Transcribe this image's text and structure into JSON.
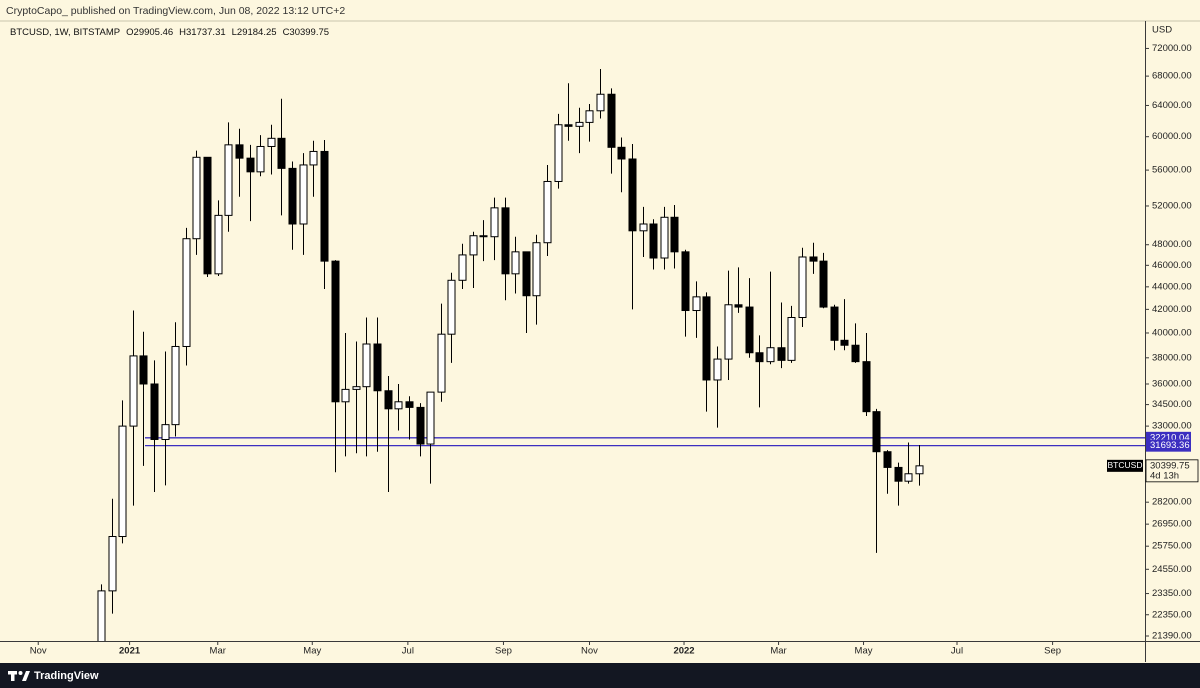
{
  "chart_data": {
    "type": "candlestick",
    "publisher_line": "CryptoCapo_ published on TradingView.com, Jun 08, 2022 13:12 UTC+2",
    "legend": {
      "symbol": "BTCUSD, 1W, BITSTAMP",
      "open": "O29905.46",
      "high": "H31737.31",
      "low": "L29184.25",
      "close": "C30399.75"
    },
    "currency": "USD",
    "brand": "TradingView",
    "open": [
      19170,
      23480,
      26270,
      33000,
      38150,
      36000,
      32100,
      33100,
      38900,
      48600,
      57500,
      45200,
      51000,
      59000,
      57400,
      55800,
      58800,
      59800,
      56200,
      50100,
      56600,
      58200,
      46400,
      34700,
      35600,
      35800,
      39100,
      35500,
      34200,
      34700,
      34300,
      31800,
      35400,
      39900,
      44600,
      47000,
      48900,
      48800,
      51800,
      45200,
      47300,
      43200,
      48200,
      54700,
      61500,
      61300,
      61800,
      63300,
      65500,
      58700,
      57300,
      49400,
      50100,
      46700,
      50800,
      47300,
      41900,
      43100,
      36300,
      37900,
      42400,
      42200,
      38400,
      37700,
      38800,
      37800,
      41300,
      46800,
      46400,
      42200,
      39400,
      39000,
      37700,
      34000,
      31300,
      30300,
      29450,
      29905.46
    ],
    "high": [
      23800,
      28400,
      34800,
      41900,
      40100,
      37800,
      38500,
      40900,
      49700,
      58300,
      57500,
      52600,
      61800,
      61000,
      59000,
      60200,
      61500,
      64900,
      57000,
      58000,
      59500,
      59600,
      46500,
      40000,
      39300,
      41300,
      41300,
      36600,
      36000,
      35100,
      34600,
      35400,
      42500,
      45300,
      48100,
      49300,
      50500,
      52900,
      52900,
      48800,
      47300,
      49000,
      56600,
      62900,
      67000,
      63700,
      64200,
      69000,
      66300,
      59900,
      59100,
      51900,
      50600,
      51900,
      52100,
      47500,
      44500,
      43500,
      38900,
      45500,
      45800,
      44800,
      39800,
      45400,
      42600,
      42300,
      47700,
      48200,
      47200,
      42400,
      42900,
      40800,
      40000,
      34200,
      31400,
      30600,
      31900,
      31737.31
    ],
    "low": [
      19000,
      22400,
      25900,
      28000,
      30400,
      28800,
      29200,
      32300,
      37400,
      47000,
      44900,
      45000,
      49300,
      53000,
      50400,
      55300,
      55500,
      51000,
      47500,
      47000,
      53000,
      43800,
      30000,
      31000,
      31200,
      31000,
      31300,
      28800,
      32700,
      32100,
      31000,
      29300,
      34700,
      37600,
      43800,
      43900,
      46400,
      46500,
      42800,
      43400,
      40000,
      40700,
      46900,
      53900,
      59500,
      58000,
      59400,
      62300,
      55600,
      53500,
      42000,
      46800,
      45600,
      45600,
      45700,
      39700,
      39600,
      34000,
      32900,
      36300,
      41700,
      38000,
      34300,
      37500,
      37200,
      37600,
      40500,
      45200,
      42100,
      38600,
      38600,
      37600,
      33700,
      25400,
      28700,
      28000,
      29300,
      29184.25
    ],
    "close": [
      23480,
      26270,
      33000,
      38150,
      36000,
      32100,
      33100,
      38900,
      48600,
      57500,
      45200,
      51000,
      59000,
      57400,
      55800,
      58800,
      59800,
      56200,
      50100,
      56600,
      58200,
      46400,
      34700,
      35600,
      35800,
      39100,
      35500,
      34200,
      34700,
      34300,
      31800,
      35400,
      39900,
      44600,
      47000,
      48900,
      48800,
      51800,
      45200,
      47300,
      43200,
      48200,
      54700,
      61500,
      61300,
      61800,
      63300,
      65500,
      58700,
      57300,
      49400,
      50100,
      46700,
      50800,
      47300,
      41900,
      43100,
      36300,
      37900,
      42400,
      42200,
      38400,
      37700,
      38800,
      37800,
      41300,
      46800,
      46400,
      42200,
      39400,
      39000,
      37700,
      34000,
      31300,
      30300,
      29450,
      29905.46,
      30399.75
    ],
    "up_color": "#ffffff",
    "down_color": "#000000",
    "log_scale": true,
    "grid": false,
    "ylim": [
      21170,
      76200
    ],
    "yticks": [
      {
        "value": 72000,
        "label": "72000.00"
      },
      {
        "value": 68000,
        "label": "68000.00"
      },
      {
        "value": 64000,
        "label": "64000.00"
      },
      {
        "value": 60000,
        "label": "60000.00"
      },
      {
        "value": 56000,
        "label": "56000.00"
      },
      {
        "value": 52000,
        "label": "52000.00"
      },
      {
        "value": 48000,
        "label": "48000.00"
      },
      {
        "value": 46000,
        "label": "46000.00"
      },
      {
        "value": 44000,
        "label": "44000.00"
      },
      {
        "value": 42000,
        "label": "42000.00"
      },
      {
        "value": 40000,
        "label": "40000.00"
      },
      {
        "value": 38000,
        "label": "38000.00"
      },
      {
        "value": 36000,
        "label": "36000.00"
      },
      {
        "value": 34500,
        "label": "34500.00"
      },
      {
        "value": 33000,
        "label": "33000.00"
      },
      {
        "value": 28200,
        "label": "28200.00"
      },
      {
        "value": 26950,
        "label": "26950.00"
      },
      {
        "value": 25750,
        "label": "25750.00"
      },
      {
        "value": 24550,
        "label": "24550.00"
      },
      {
        "value": 23350,
        "label": "23350.00"
      },
      {
        "value": 22350,
        "label": "22350.00"
      },
      {
        "value": 21390,
        "label": "21390.00"
      }
    ],
    "xlim": [
      -9.5,
      98.3
    ],
    "xticks": [
      {
        "value": -5.9,
        "label": "Nov"
      },
      {
        "value": 2.7,
        "label": "2021"
      },
      {
        "value": 11.0,
        "label": "Mar"
      },
      {
        "value": 19.9,
        "label": "May"
      },
      {
        "value": 28.9,
        "label": "Jul"
      },
      {
        "value": 37.9,
        "label": "Sep"
      },
      {
        "value": 46.0,
        "label": "Nov"
      },
      {
        "value": 54.9,
        "label": "2022"
      },
      {
        "value": 63.8,
        "label": "Mar"
      },
      {
        "value": 71.8,
        "label": "May"
      },
      {
        "value": 80.6,
        "label": "Jul"
      },
      {
        "value": 89.6,
        "label": "Sep"
      }
    ],
    "hlines": [
      {
        "value": 32210.04,
        "color": "#3c2fc0"
      },
      {
        "value": 31693.36,
        "color": "#3c2fc0"
      }
    ],
    "last_price": {
      "symbol": "BTCUSD",
      "price": 30399.75,
      "countdown": "4d 13h"
    }
  }
}
